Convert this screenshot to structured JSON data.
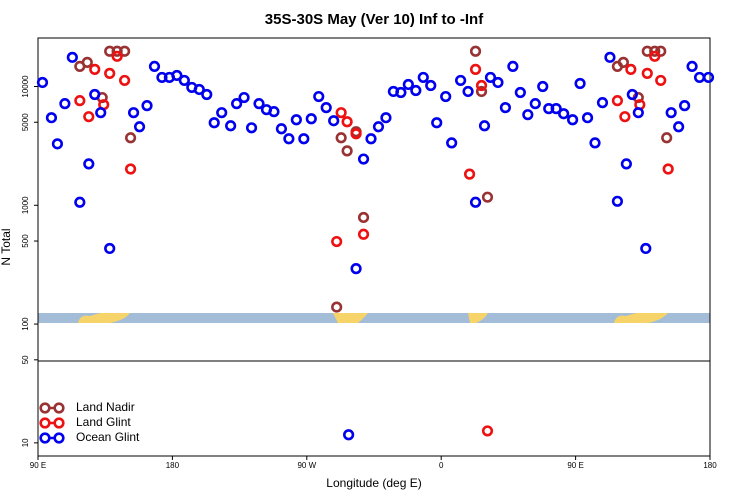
{
  "chart_data": {
    "type": "scatter",
    "title": "35S-30S May (Ver 10)   Inf to -Inf",
    "x_label": "Longitude (deg E)",
    "y_label": "N Total",
    "xlim": [
      90,
      540
    ],
    "ylim": [
      7.75,
      25600
    ],
    "log_y": true,
    "legend": "lower left",
    "xticks": [
      {
        "value": 90,
        "label": "90 E"
      },
      180,
      {
        "value": 270,
        "label": "90 W"
      },
      {
        "value": 360,
        "label": "0"
      },
      {
        "value": 450,
        "label": "90 E"
      },
      {
        "value": 540,
        "label": "180"
      }
    ],
    "yticks": [
      10,
      50,
      100,
      500,
      1000,
      5000,
      10000
    ],
    "series": [
      {
        "name": "Land Nadir",
        "color": "#993333",
        "x": [
          118,
          123,
          133,
          138,
          143,
          148,
          152,
          290,
          293,
          297,
          303,
          308,
          383,
          387,
          391,
          478,
          482,
          492,
          498,
          503,
          507,
          511
        ],
        "values": [
          14760,
          15960,
          8070,
          19800,
          19800,
          19800,
          3700,
          139,
          3700,
          2870,
          4160,
          790,
          19800,
          9080,
          1170,
          14760,
          15960,
          8070,
          19800,
          19800,
          19800,
          3700
        ]
      },
      {
        "name": "Land Glint",
        "color": "#ee1111",
        "x": [
          118,
          124,
          128,
          134,
          138,
          143,
          148,
          152,
          290,
          293,
          297,
          303,
          308,
          379,
          383,
          387,
          391,
          478,
          483,
          487,
          493,
          498,
          503,
          507,
          512
        ],
        "values": [
          7600,
          5570,
          13930,
          7030,
          12890,
          17950,
          11250,
          2020,
          495,
          6020,
          5050,
          4000,
          570,
          1830,
          13930,
          10190,
          12.6,
          7600,
          5570,
          13930,
          7030,
          12890,
          17950,
          11250,
          2020
        ]
      },
      {
        "name": "Ocean Glint",
        "color": "#0000ee",
        "x": [
          93,
          99,
          103,
          108,
          113,
          118,
          124,
          128,
          132,
          138,
          154,
          158,
          163,
          168,
          173,
          178,
          183,
          188,
          193,
          198,
          203,
          208,
          213,
          219,
          223,
          228,
          233,
          238,
          243,
          248,
          253,
          258,
          263,
          268,
          273,
          278,
          283,
          288,
          298,
          303,
          308,
          313,
          318,
          323,
          328,
          333,
          338,
          343,
          348,
          353,
          357,
          363,
          367,
          373,
          378,
          383,
          389,
          393,
          398,
          403,
          408,
          413,
          418,
          423,
          428,
          432,
          437,
          442,
          448,
          453,
          458,
          463,
          468,
          473,
          478,
          484,
          488,
          492,
          497,
          514,
          519,
          523,
          528,
          533,
          539
        ],
        "values": [
          10810,
          5460,
          3290,
          7170,
          17600,
          1060,
          2230,
          8560,
          6020,
          433,
          6020,
          4580,
          6900,
          14760,
          11920,
          11920,
          12390,
          11250,
          9820,
          9440,
          8560,
          4950,
          6020,
          4670,
          7170,
          8070,
          4490,
          7170,
          6380,
          6140,
          4410,
          3630,
          5250,
          3630,
          5350,
          8230,
          6640,
          5150,
          11.7,
          293,
          2450,
          3630,
          4580,
          5460,
          9080,
          8900,
          10400,
          9250,
          11920,
          10190,
          4950,
          8230,
          3350,
          11250,
          9080,
          1060,
          4670,
          11920,
          10810,
          6640,
          14760,
          8900,
          5790,
          7170,
          10000,
          6510,
          6510,
          5900,
          5250,
          10600,
          5460,
          3350,
          7310,
          17600,
          1080,
          2230,
          8560,
          6020,
          433,
          6020,
          4580,
          6900,
          14760,
          11920,
          11920
        ]
      }
    ]
  }
}
